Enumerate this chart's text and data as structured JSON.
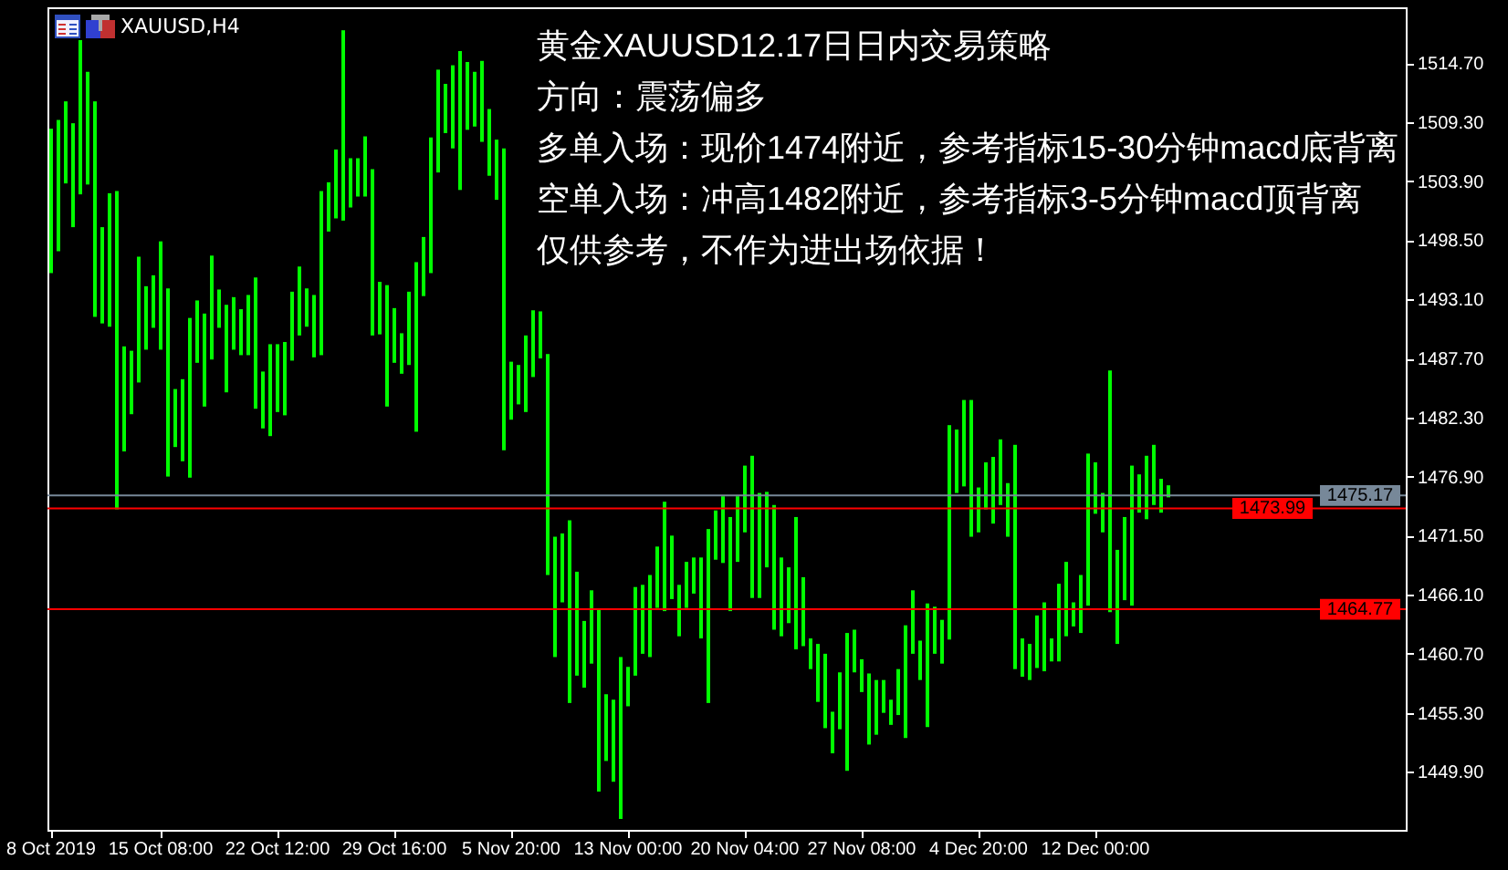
{
  "chart_data": {
    "type": "bar",
    "title": "XAUUSD,H4",
    "annotations": [
      "黄金XAUUSD12.17日日内交易策略",
      "方向：震荡偏多",
      "多单入场：现价1474附近，参考指标15-30分钟macd底背离",
      "空单入场：冲高1482附近，参考指标3-5分钟macd顶背离",
      "仅供参考，不作为进出场依据！"
    ],
    "categories": [
      "8 Oct 2019",
      null,
      null,
      null,
      null,
      null,
      null,
      null,
      null,
      null,
      null,
      null,
      null,
      null,
      null,
      "15 Oct 08:00",
      null,
      null,
      null,
      null,
      null,
      null,
      null,
      null,
      null,
      null,
      null,
      null,
      null,
      null,
      null,
      "22 Oct 12:00",
      null,
      null,
      null,
      null,
      null,
      null,
      null,
      null,
      null,
      null,
      null,
      null,
      null,
      null,
      null,
      "29 Oct 16:00",
      null,
      null,
      null,
      null,
      null,
      null,
      null,
      null,
      null,
      null,
      null,
      null,
      null,
      null,
      null,
      "5 Nov 20:00",
      null,
      null,
      null,
      null,
      null,
      null,
      null,
      null,
      null,
      null,
      null,
      null,
      null,
      null,
      null,
      "13 Nov 00:00",
      null,
      null,
      null,
      null,
      null,
      null,
      null,
      null,
      null,
      null,
      null,
      null,
      null,
      null,
      null,
      "20 Nov 04:00",
      null,
      null,
      null,
      null,
      null,
      null,
      null,
      null,
      null,
      null,
      null,
      null,
      null,
      null,
      null,
      "27 Nov 08:00",
      null,
      null,
      null,
      null,
      null,
      null,
      null,
      null,
      null,
      null,
      null,
      null,
      null,
      null,
      null,
      "4 Dec 20:00",
      null,
      null,
      null,
      null,
      null,
      null,
      null,
      null,
      null,
      null,
      null,
      null,
      null,
      null,
      null,
      "12 Dec 00:00",
      null,
      null,
      null,
      null,
      null,
      null,
      null,
      null,
      null,
      null,
      null,
      null,
      null,
      null,
      null,
      null,
      null,
      null,
      null,
      null,
      null,
      null,
      null,
      null,
      null,
      null,
      null,
      null,
      null,
      null,
      null,
      null,
      null,
      null,
      null,
      null,
      null,
      null,
      null,
      null,
      null,
      null
    ],
    "base": [
      1495.5,
      1497.5,
      1503.7,
      1499.7,
      1502.7,
      1503.6,
      1491.5,
      1490.9,
      1490.6,
      1473.9,
      1479.2,
      1482.6,
      1485.5,
      1488.5,
      1490.5,
      1488.5,
      1476.9,
      1479.6,
      1478.3,
      1476.8,
      1487.3,
      1483.3,
      1487.6,
      1490.5,
      1484.6,
      1488.5,
      1488.0,
      1488.0,
      1483.1,
      1481.3,
      1480.6,
      1482.8,
      1482.5,
      1487.5,
      1489.8,
      1490.6,
      1487.8,
      1488.0,
      1499.3,
      1500.5,
      1500.3,
      1501.5,
      1502.5,
      1502.5,
      1489.8,
      1489.9,
      1483.3,
      1487.3,
      1486.3,
      1487.1,
      1481.0,
      1493.4,
      1495.5,
      1504.7,
      1508.3,
      1506.9,
      1503.1,
      1508.6,
      1508.9,
      1507.5,
      1504.4,
      1502.2,
      1479.3,
      1482.1,
      1483.5,
      1482.8,
      1486.0,
      1487.7,
      1467.9,
      1460.4,
      1465.4,
      1456.2,
      1458.7,
      1457.6,
      1459.8,
      1448.1,
      1450.9,
      1449.0,
      1445.6,
      1455.9,
      1458.7,
      1460.7,
      1460.4,
      1464.9,
      1464.6,
      1465.7,
      1462.3,
      1464.9,
      1466.2,
      1462.1,
      1456.2,
      1469.3,
      1469.0,
      1464.6,
      1469.1,
      1471.8,
      1465.8,
      1465.8,
      1468.6,
      1462.9,
      1462.3,
      1463.5,
      1461.1,
      1461.4,
      1459.3,
      1456.3,
      1453.9,
      1451.6,
      1453.8,
      1450.0,
      1459.0,
      1457.2,
      1452.4,
      1453.3,
      1455.3,
      1454.2,
      1455.1,
      1453.0,
      1460.7,
      1458.3,
      1454.0,
      1460.7,
      1459.8,
      1462.0,
      1475.4,
      1476.0,
      1471.4,
      1471.8,
      1473.9,
      1472.6,
      1474.3,
      1471.4,
      1459.3,
      1458.6,
      1458.3,
      1459.4,
      1459.1,
      1460.0,
      1460.0,
      1462.3,
      1463.2,
      1462.6,
      1465.1,
      1473.5,
      1471.8,
      1464.5,
      1461.6,
      1465.6,
      1465.1,
      1473.6,
      1473.0,
      1474.3,
      1473.6,
      1475.0,
      null,
      null,
      null,
      null,
      null,
      null,
      null,
      null,
      null,
      null,
      null,
      null,
      null,
      null,
      null,
      null,
      null,
      null,
      null,
      null,
      null,
      null,
      null,
      null,
      null,
      null,
      null,
      null,
      null,
      null,
      null,
      null
    ],
    "values": [
      13.2,
      12.0,
      7.5,
      9.5,
      14.1,
      10.3,
      19.7,
      8.8,
      12.2,
      29.1,
      9.6,
      5.8,
      11.5,
      5.8,
      4.8,
      9.9,
      17.2,
      5.3,
      7.5,
      14.6,
      5.7,
      8.5,
      9.5,
      3.5,
      8.0,
      4.8,
      4.2,
      5.5,
      12.0,
      5.2,
      8.4,
      6.2,
      6.7,
      6.3,
      6.3,
      3.5,
      5.7,
      15.0,
      4.5,
      6.3,
      17.4,
      4.5,
      3.5,
      5.5,
      15.2,
      4.8,
      11.1,
      5.0,
      3.7,
      6.7,
      15.5,
      5.4,
      12.4,
      9.4,
      4.5,
      7.6,
      12.7,
      6.2,
      5.0,
      7.4,
      6.1,
      5.5,
      27.6,
      5.3,
      3.6,
      7.0,
      6.1,
      4.3,
      20.2,
      11.0,
      6.3,
      16.7,
      9.5,
      6.1,
      6.7,
      16.7,
      6.1,
      7.5,
      14.8,
      3.6,
      8.1,
      6.3,
      7.5,
      5.6,
      10.0,
      5.8,
      4.7,
      4.2,
      3.3,
      7.4,
      15.9,
      4.5,
      6.1,
      8.6,
      6.0,
      6.1,
      13.0,
      9.6,
      6.9,
      11.4,
      7.2,
      5.1,
      12.1,
      6.3,
      2.8,
      5.3,
      6.8,
      3.8,
      5.2,
      12.6,
      3.9,
      3.0,
      6.5,
      5.0,
      3.0,
      2.3,
      4.2,
      10.3,
      5.8,
      3.6,
      11.3,
      4.3,
      4.0,
      19.6,
      5.8,
      7.9,
      12.5,
      4.1,
      4.3,
      6.1,
      6.0,
      4.9,
      20.5,
      3.5,
      3.3,
      4.8,
      6.3,
      2.1,
      7.1,
      6.8,
      2.2,
      5.3,
      13.9,
      4.7,
      3.6,
      22.1,
      8.6,
      7.6,
      12.8,
      3.5,
      5.8,
      5.5,
      3.1,
      1.1,
      null,
      null,
      null,
      null,
      null,
      null,
      null,
      null,
      null,
      null,
      null,
      null,
      null,
      null,
      null,
      null,
      null,
      null,
      null,
      null,
      null,
      null,
      null,
      null,
      null,
      null,
      null,
      null,
      null,
      null,
      null,
      null
    ],
    "color": "#00ff00",
    "ylim": [
      1444.6,
      1519.8
    ],
    "yticks": [
      {
        "value": 1514.7,
        "label": "1514.70"
      },
      {
        "value": 1509.3,
        "label": "1509.30"
      },
      {
        "value": 1503.9,
        "label": "1503.90"
      },
      {
        "value": 1498.5,
        "label": "1498.50"
      },
      {
        "value": 1493.1,
        "label": "1493.10"
      },
      {
        "value": 1487.7,
        "label": "1487.70"
      },
      {
        "value": 1482.3,
        "label": "1482.30"
      },
      {
        "value": 1476.9,
        "label": "1476.90"
      },
      {
        "value": 1471.5,
        "label": "1471.50"
      },
      {
        "value": 1466.1,
        "label": "1466.10"
      },
      {
        "value": 1460.7,
        "label": "1460.70"
      },
      {
        "value": 1455.3,
        "label": "1455.30"
      },
      {
        "value": 1449.9,
        "label": "1449.90"
      }
    ],
    "ref_lines": [
      {
        "axis": "y",
        "value": 1475.17,
        "label": "1475.17",
        "color": "#778899"
      },
      {
        "axis": "y",
        "value": 1473.99,
        "label": "1473.99",
        "color": "#ff0000"
      },
      {
        "axis": "y",
        "value": 1464.77,
        "label": "1464.77",
        "color": "#ff0000"
      }
    ]
  }
}
